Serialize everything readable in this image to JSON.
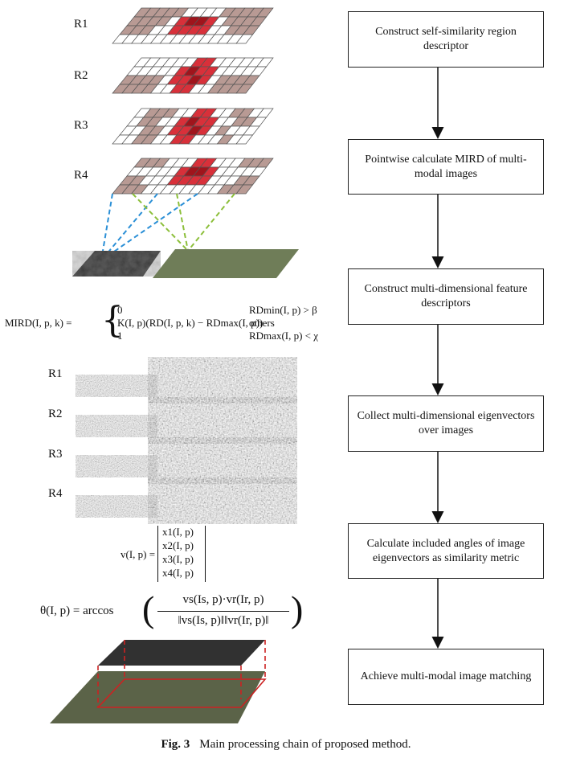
{
  "grid_labels": [
    "R1",
    "R2",
    "R3",
    "R4"
  ],
  "texture_labels": [
    "R1",
    "R2",
    "R3",
    "R4"
  ],
  "flow_steps": [
    {
      "text": "Construct self-similarity region descriptor"
    },
    {
      "text": "Pointwise calculate MIRD of multi-modal images"
    },
    {
      "text": "Construct multi-dimensional feature descriptors"
    },
    {
      "text": "Collect multi-dimensional eigenvectors over images"
    },
    {
      "text": "Calculate included angles of image eigenvectors as similarity metric"
    },
    {
      "text": "Achieve multi-modal image matching"
    }
  ],
  "mird": {
    "lhs": "MIRD(I, p, k) =",
    "case1_value": "0",
    "case1_cond": "RDmin(I, p) > β",
    "case2_value": "K(I, p)(RD(I, p, k) − RDmax(I, p))",
    "case2_cond": "others",
    "case3_value": "1",
    "case3_cond": "RDmax(I, p) < χ"
  },
  "vector": {
    "lhs": "v(I, p) =",
    "entries": [
      "x1(I, p)",
      "x2(I, p)",
      "x3(I, p)",
      "x4(I, p)"
    ]
  },
  "theta": {
    "lhs": "θ(I, p) = arccos",
    "numerator": "vs(Is, p)·vr(Ir, p)",
    "denominator": "‖vs(Is, p)‖‖vr(Ir, p)‖"
  },
  "caption": {
    "label": "Fig. 3",
    "text": "Main processing chain of proposed method."
  },
  "colors": {
    "grid_line": "#555555",
    "grid_brown": "#b89a94",
    "grid_red": "#d8303a",
    "grid_darkred": "#a0141c",
    "dash_blue": "#2a8fd6",
    "dash_green": "#8cbf3a",
    "box_border": "#222222",
    "arrow": "#111111",
    "outline_red": "#cc2222"
  }
}
